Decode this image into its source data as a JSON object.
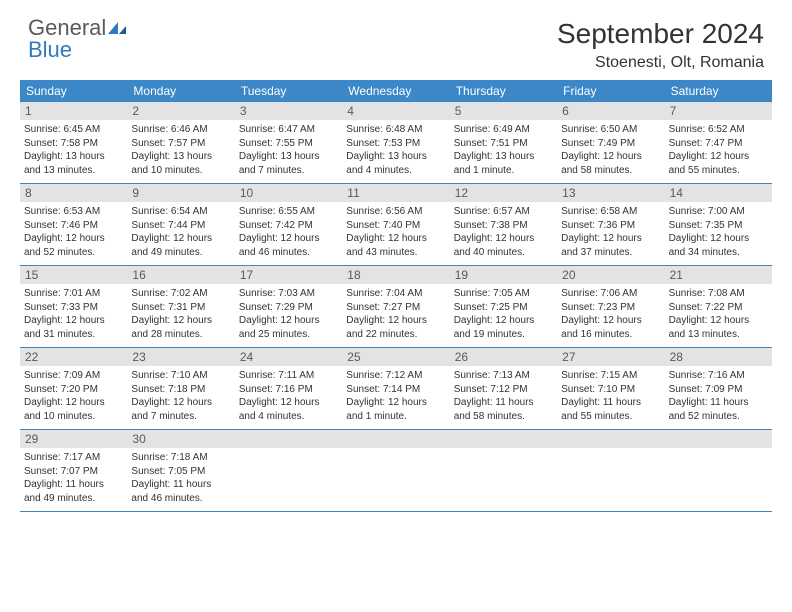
{
  "brand": {
    "part1": "General",
    "part2": "Blue"
  },
  "title": "September 2024",
  "location": "Stoenesti, Olt, Romania",
  "colors": {
    "header_bg": "#3b87c8",
    "header_text": "#ffffff",
    "daynum_bg": "#e3e3e3",
    "daynum_text": "#5a5a5a",
    "body_text": "#333333",
    "rule": "#3b87c8",
    "brand_gray": "#5a5a5a",
    "brand_blue": "#2f7ac0",
    "background": "#ffffff"
  },
  "typography": {
    "title_fontsize": 28,
    "location_fontsize": 16,
    "dow_fontsize": 12,
    "daynum_fontsize": 12,
    "cell_fontsize": 10
  },
  "days_of_week": [
    "Sunday",
    "Monday",
    "Tuesday",
    "Wednesday",
    "Thursday",
    "Friday",
    "Saturday"
  ],
  "weeks": [
    [
      {
        "n": "1",
        "sunrise": "Sunrise: 6:45 AM",
        "sunset": "Sunset: 7:58 PM",
        "daylight1": "Daylight: 13 hours",
        "daylight2": "and 13 minutes."
      },
      {
        "n": "2",
        "sunrise": "Sunrise: 6:46 AM",
        "sunset": "Sunset: 7:57 PM",
        "daylight1": "Daylight: 13 hours",
        "daylight2": "and 10 minutes."
      },
      {
        "n": "3",
        "sunrise": "Sunrise: 6:47 AM",
        "sunset": "Sunset: 7:55 PM",
        "daylight1": "Daylight: 13 hours",
        "daylight2": "and 7 minutes."
      },
      {
        "n": "4",
        "sunrise": "Sunrise: 6:48 AM",
        "sunset": "Sunset: 7:53 PM",
        "daylight1": "Daylight: 13 hours",
        "daylight2": "and 4 minutes."
      },
      {
        "n": "5",
        "sunrise": "Sunrise: 6:49 AM",
        "sunset": "Sunset: 7:51 PM",
        "daylight1": "Daylight: 13 hours",
        "daylight2": "and 1 minute."
      },
      {
        "n": "6",
        "sunrise": "Sunrise: 6:50 AM",
        "sunset": "Sunset: 7:49 PM",
        "daylight1": "Daylight: 12 hours",
        "daylight2": "and 58 minutes."
      },
      {
        "n": "7",
        "sunrise": "Sunrise: 6:52 AM",
        "sunset": "Sunset: 7:47 PM",
        "daylight1": "Daylight: 12 hours",
        "daylight2": "and 55 minutes."
      }
    ],
    [
      {
        "n": "8",
        "sunrise": "Sunrise: 6:53 AM",
        "sunset": "Sunset: 7:46 PM",
        "daylight1": "Daylight: 12 hours",
        "daylight2": "and 52 minutes."
      },
      {
        "n": "9",
        "sunrise": "Sunrise: 6:54 AM",
        "sunset": "Sunset: 7:44 PM",
        "daylight1": "Daylight: 12 hours",
        "daylight2": "and 49 minutes."
      },
      {
        "n": "10",
        "sunrise": "Sunrise: 6:55 AM",
        "sunset": "Sunset: 7:42 PM",
        "daylight1": "Daylight: 12 hours",
        "daylight2": "and 46 minutes."
      },
      {
        "n": "11",
        "sunrise": "Sunrise: 6:56 AM",
        "sunset": "Sunset: 7:40 PM",
        "daylight1": "Daylight: 12 hours",
        "daylight2": "and 43 minutes."
      },
      {
        "n": "12",
        "sunrise": "Sunrise: 6:57 AM",
        "sunset": "Sunset: 7:38 PM",
        "daylight1": "Daylight: 12 hours",
        "daylight2": "and 40 minutes."
      },
      {
        "n": "13",
        "sunrise": "Sunrise: 6:58 AM",
        "sunset": "Sunset: 7:36 PM",
        "daylight1": "Daylight: 12 hours",
        "daylight2": "and 37 minutes."
      },
      {
        "n": "14",
        "sunrise": "Sunrise: 7:00 AM",
        "sunset": "Sunset: 7:35 PM",
        "daylight1": "Daylight: 12 hours",
        "daylight2": "and 34 minutes."
      }
    ],
    [
      {
        "n": "15",
        "sunrise": "Sunrise: 7:01 AM",
        "sunset": "Sunset: 7:33 PM",
        "daylight1": "Daylight: 12 hours",
        "daylight2": "and 31 minutes."
      },
      {
        "n": "16",
        "sunrise": "Sunrise: 7:02 AM",
        "sunset": "Sunset: 7:31 PM",
        "daylight1": "Daylight: 12 hours",
        "daylight2": "and 28 minutes."
      },
      {
        "n": "17",
        "sunrise": "Sunrise: 7:03 AM",
        "sunset": "Sunset: 7:29 PM",
        "daylight1": "Daylight: 12 hours",
        "daylight2": "and 25 minutes."
      },
      {
        "n": "18",
        "sunrise": "Sunrise: 7:04 AM",
        "sunset": "Sunset: 7:27 PM",
        "daylight1": "Daylight: 12 hours",
        "daylight2": "and 22 minutes."
      },
      {
        "n": "19",
        "sunrise": "Sunrise: 7:05 AM",
        "sunset": "Sunset: 7:25 PM",
        "daylight1": "Daylight: 12 hours",
        "daylight2": "and 19 minutes."
      },
      {
        "n": "20",
        "sunrise": "Sunrise: 7:06 AM",
        "sunset": "Sunset: 7:23 PM",
        "daylight1": "Daylight: 12 hours",
        "daylight2": "and 16 minutes."
      },
      {
        "n": "21",
        "sunrise": "Sunrise: 7:08 AM",
        "sunset": "Sunset: 7:22 PM",
        "daylight1": "Daylight: 12 hours",
        "daylight2": "and 13 minutes."
      }
    ],
    [
      {
        "n": "22",
        "sunrise": "Sunrise: 7:09 AM",
        "sunset": "Sunset: 7:20 PM",
        "daylight1": "Daylight: 12 hours",
        "daylight2": "and 10 minutes."
      },
      {
        "n": "23",
        "sunrise": "Sunrise: 7:10 AM",
        "sunset": "Sunset: 7:18 PM",
        "daylight1": "Daylight: 12 hours",
        "daylight2": "and 7 minutes."
      },
      {
        "n": "24",
        "sunrise": "Sunrise: 7:11 AM",
        "sunset": "Sunset: 7:16 PM",
        "daylight1": "Daylight: 12 hours",
        "daylight2": "and 4 minutes."
      },
      {
        "n": "25",
        "sunrise": "Sunrise: 7:12 AM",
        "sunset": "Sunset: 7:14 PM",
        "daylight1": "Daylight: 12 hours",
        "daylight2": "and 1 minute."
      },
      {
        "n": "26",
        "sunrise": "Sunrise: 7:13 AM",
        "sunset": "Sunset: 7:12 PM",
        "daylight1": "Daylight: 11 hours",
        "daylight2": "and 58 minutes."
      },
      {
        "n": "27",
        "sunrise": "Sunrise: 7:15 AM",
        "sunset": "Sunset: 7:10 PM",
        "daylight1": "Daylight: 11 hours",
        "daylight2": "and 55 minutes."
      },
      {
        "n": "28",
        "sunrise": "Sunrise: 7:16 AM",
        "sunset": "Sunset: 7:09 PM",
        "daylight1": "Daylight: 11 hours",
        "daylight2": "and 52 minutes."
      }
    ],
    [
      {
        "n": "29",
        "sunrise": "Sunrise: 7:17 AM",
        "sunset": "Sunset: 7:07 PM",
        "daylight1": "Daylight: 11 hours",
        "daylight2": "and 49 minutes."
      },
      {
        "n": "30",
        "sunrise": "Sunrise: 7:18 AM",
        "sunset": "Sunset: 7:05 PM",
        "daylight1": "Daylight: 11 hours",
        "daylight2": "and 46 minutes."
      },
      {
        "empty": true
      },
      {
        "empty": true
      },
      {
        "empty": true
      },
      {
        "empty": true
      },
      {
        "empty": true
      }
    ]
  ]
}
